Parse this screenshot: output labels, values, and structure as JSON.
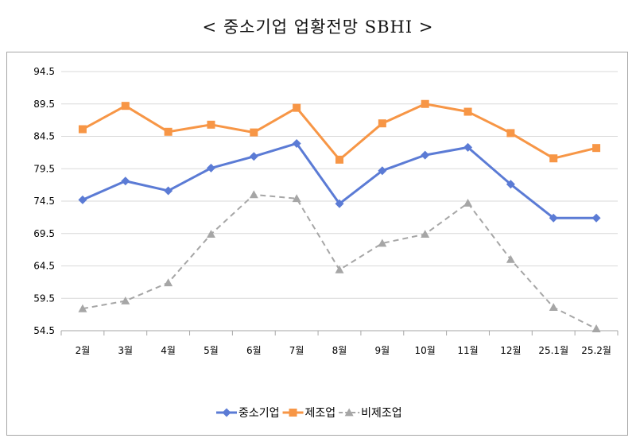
{
  "title": "< 중소기업 업황전망 SBHI >",
  "chart_data": {
    "type": "line",
    "title": "< 중소기업 업황전망 SBHI >",
    "categories": [
      "2월",
      "3월",
      "4월",
      "5월",
      "6월",
      "7월",
      "8월",
      "9월",
      "10월",
      "11월",
      "12월",
      "25.1월",
      "25.2월"
    ],
    "ylim": [
      54.5,
      94.5
    ],
    "yticks": [
      "94.5",
      "89.5",
      "84.5",
      "79.5",
      "74.5",
      "69.5",
      "64.5",
      "59.5",
      "54.5"
    ],
    "grid": true,
    "legend_position": "bottom",
    "series": [
      {
        "name": "중소기업",
        "color": "#5b7bd5",
        "marker": "diamond",
        "dashed": false,
        "values": [
          74.7,
          77.6,
          76.1,
          79.6,
          81.4,
          83.4,
          74.1,
          79.2,
          81.6,
          82.8,
          77.1,
          71.9,
          71.9
        ]
      },
      {
        "name": "제조업",
        "color": "#f79646",
        "marker": "square",
        "dashed": false,
        "values": [
          85.6,
          89.2,
          85.2,
          86.3,
          85.1,
          88.9,
          80.9,
          86.5,
          89.5,
          88.3,
          85.0,
          81.1,
          82.7
        ]
      },
      {
        "name": "비제조업",
        "color": "#a6a6a6",
        "marker": "triangle",
        "dashed": true,
        "values": [
          57.9,
          59.1,
          61.9,
          69.4,
          75.5,
          74.9,
          63.9,
          68.0,
          69.4,
          74.2,
          65.5,
          58.1,
          54.8
        ]
      }
    ]
  }
}
